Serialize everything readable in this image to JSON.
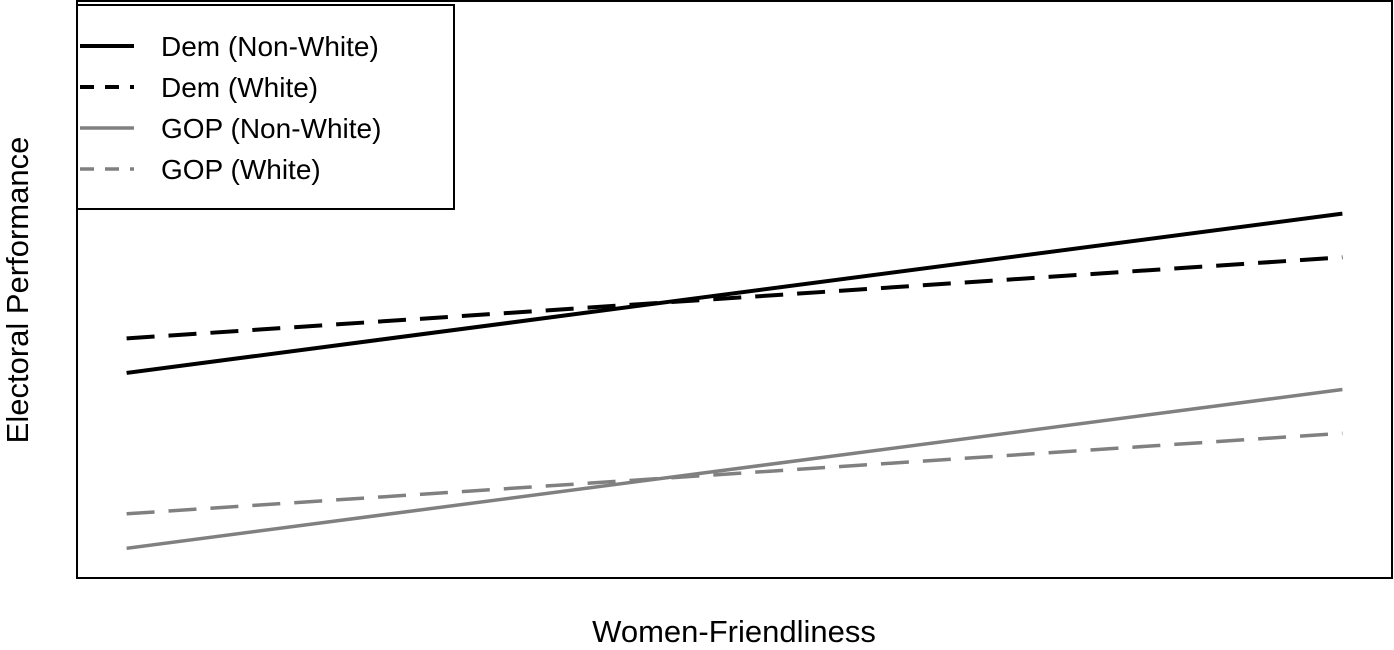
{
  "chart_data": {
    "type": "line",
    "title": "",
    "xlabel": "Women-Friendliness",
    "ylabel": "Electoral Performance",
    "x": [
      0,
      1
    ],
    "xlim": [
      -0.04,
      1.04
    ],
    "ylim": [
      0,
      1
    ],
    "grid": false,
    "legend_position": "top-left",
    "series": [
      {
        "name": "Dem (Non-White)",
        "values": [
          0.355,
          0.632
        ],
        "color": "#000000",
        "dash": "solid"
      },
      {
        "name": "Dem (White)",
        "values": [
          0.415,
          0.556
        ],
        "color": "#000000",
        "dash": "dashed"
      },
      {
        "name": "GOP (Non-White)",
        "values": [
          0.05,
          0.326
        ],
        "color": "#808080",
        "dash": "solid"
      },
      {
        "name": "GOP (White)",
        "values": [
          0.11,
          0.25
        ],
        "color": "#808080",
        "dash": "dashed"
      }
    ]
  }
}
